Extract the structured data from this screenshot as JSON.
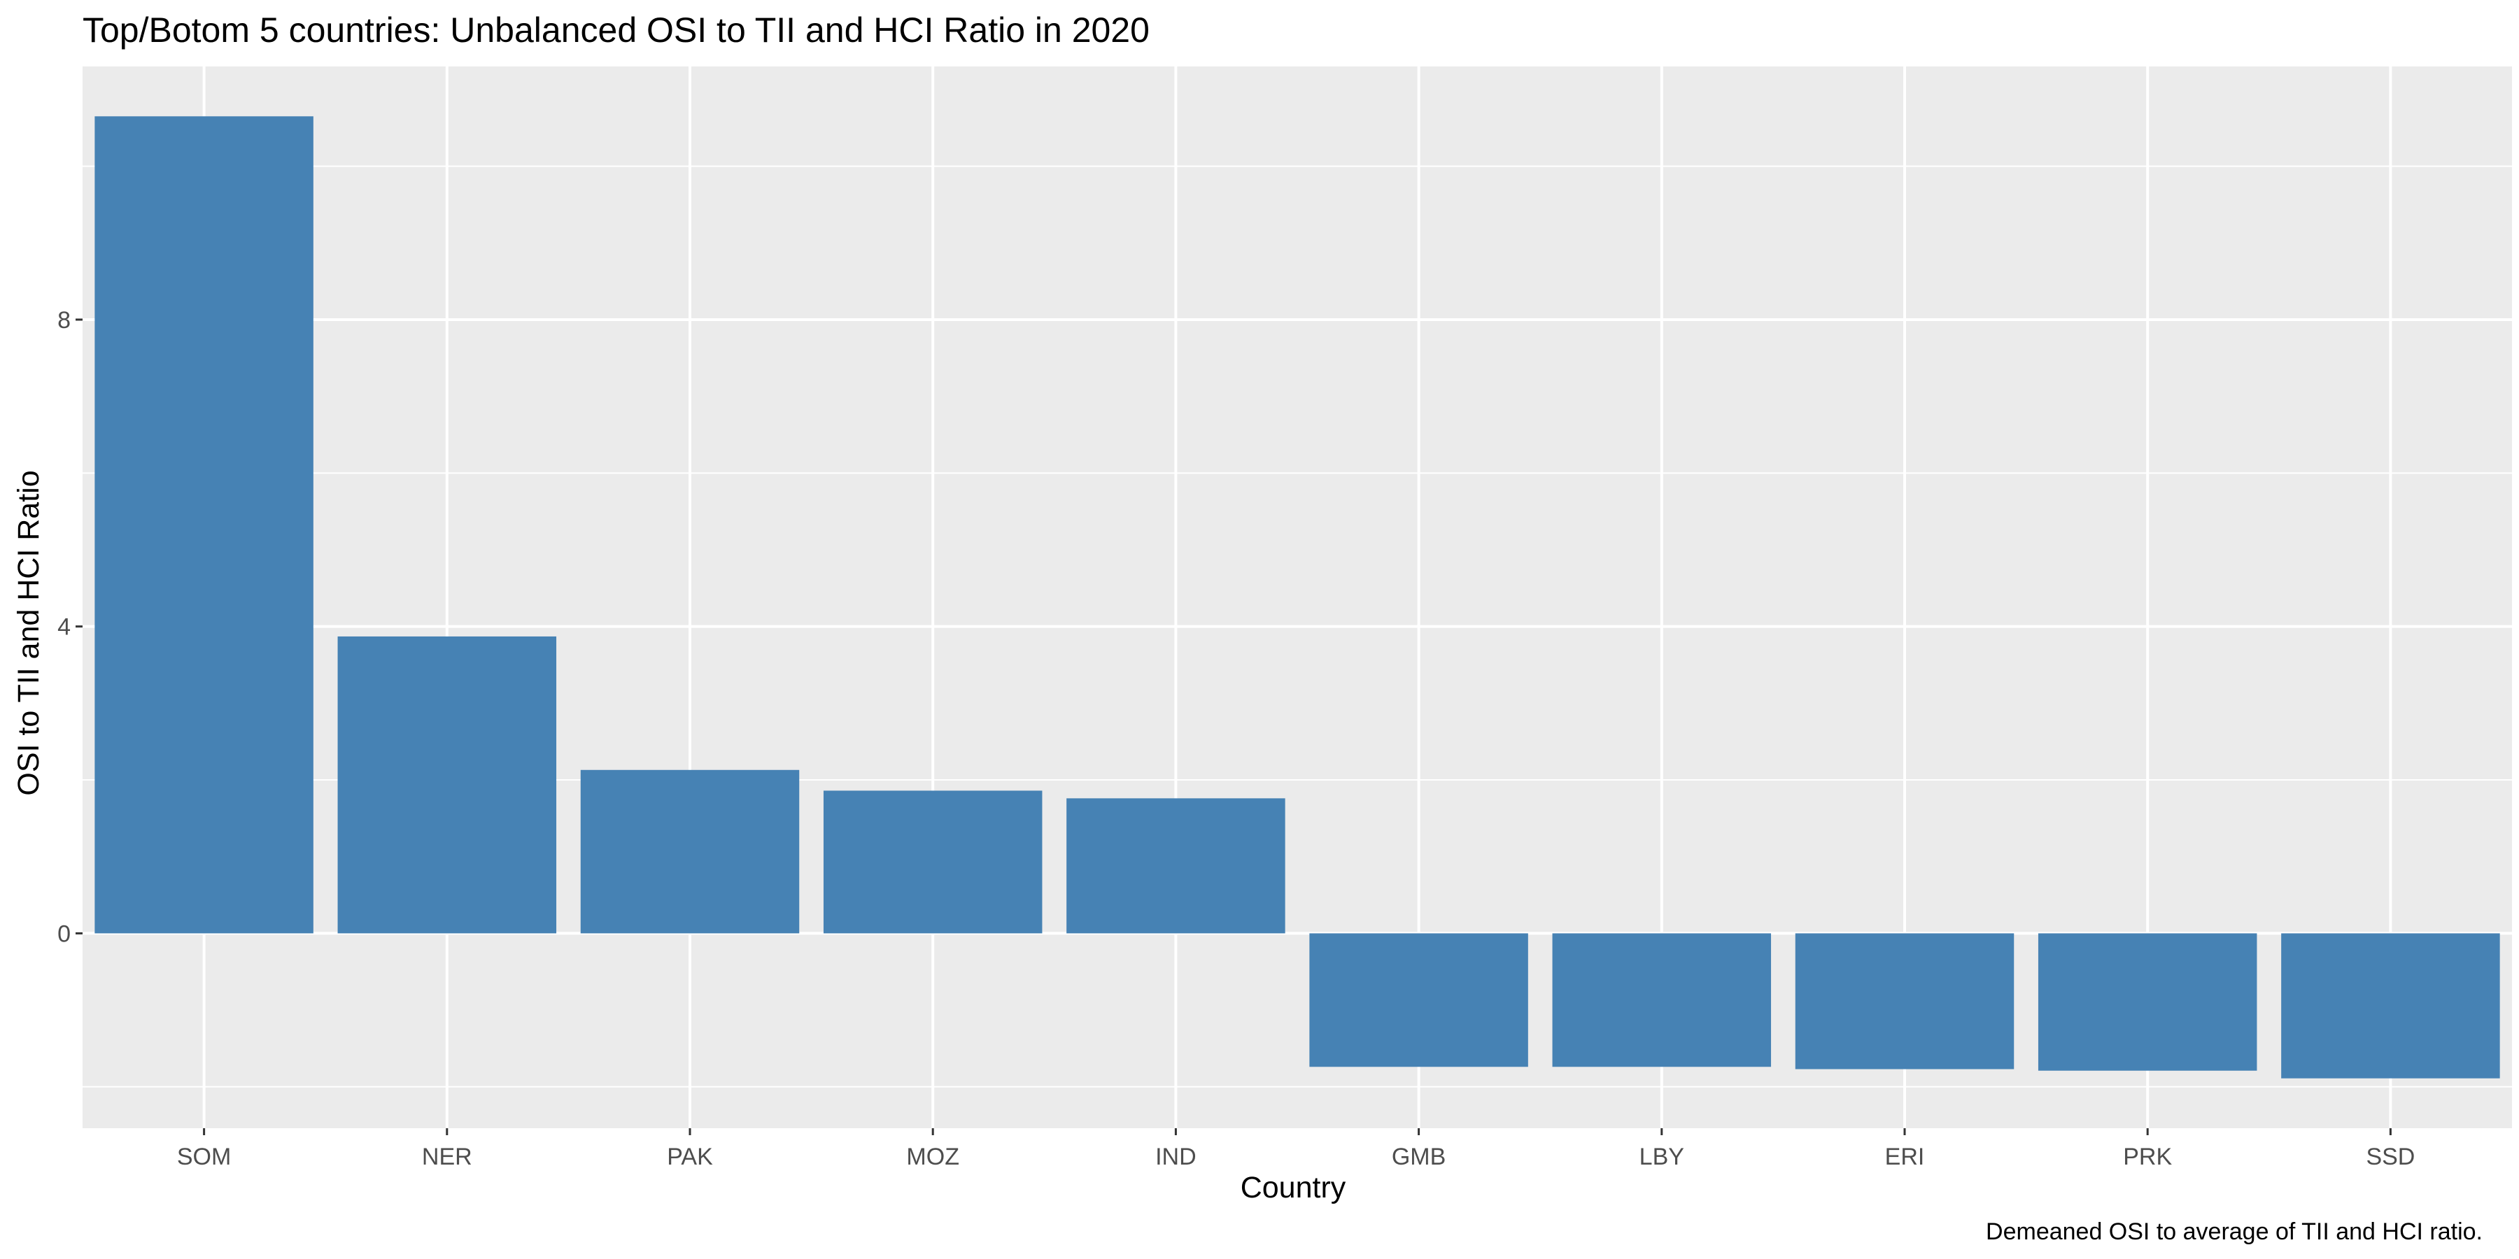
{
  "chart_data": {
    "type": "bar",
    "title": "Top/Botom 5 countries: Unbalanced OSI to TII and HCI Ratio in 2020",
    "xlabel": "Country",
    "ylabel": "OSI to TII and HCI Ratio",
    "caption": "Demeaned OSI to average of TII and HCI ratio.",
    "categories": [
      "SOM",
      "NER",
      "PAK",
      "MOZ",
      "IND",
      "GMB",
      "LBY",
      "ERI",
      "PRK",
      "SSD"
    ],
    "values": [
      10.65,
      3.87,
      2.13,
      1.86,
      1.76,
      -1.74,
      -1.74,
      -1.77,
      -1.79,
      -1.89
    ],
    "yticks": [
      0,
      4,
      8
    ],
    "ylim": [
      -2.54,
      11.3
    ],
    "grid": true,
    "legend": "none",
    "colors": {
      "bar": "#4682b4",
      "panel": "#ebebeb",
      "grid": "#ffffff",
      "tick": "#333333"
    }
  }
}
